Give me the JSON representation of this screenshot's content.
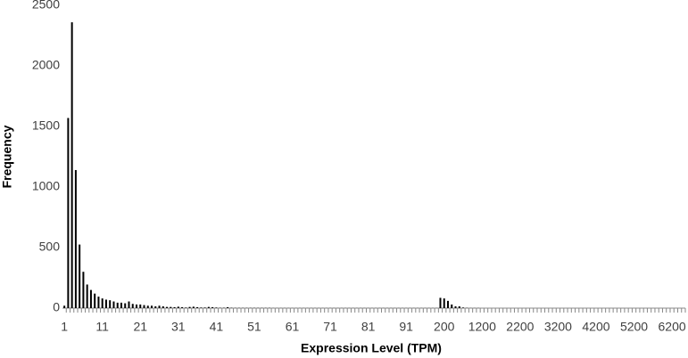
{
  "chart_data": {
    "type": "bar",
    "x_label": "Expression Level (TPM)",
    "y_label": "Frequency",
    "categories": [
      "1",
      null,
      null,
      null,
      null,
      null,
      null,
      null,
      null,
      null,
      "11",
      null,
      null,
      null,
      null,
      null,
      null,
      null,
      null,
      null,
      "21",
      null,
      null,
      null,
      null,
      null,
      null,
      null,
      null,
      null,
      "31",
      null,
      null,
      null,
      null,
      null,
      null,
      null,
      null,
      null,
      "41",
      null,
      null,
      null,
      null,
      null,
      null,
      null,
      null,
      null,
      "51",
      null,
      null,
      null,
      null,
      null,
      null,
      null,
      null,
      null,
      "61",
      null,
      null,
      null,
      null,
      null,
      null,
      null,
      null,
      null,
      "71",
      null,
      null,
      null,
      null,
      null,
      null,
      null,
      null,
      null,
      "81",
      null,
      null,
      null,
      null,
      null,
      null,
      null,
      null,
      null,
      "91",
      null,
      null,
      null,
      null,
      null,
      null,
      null,
      null,
      null,
      "200",
      null,
      null,
      null,
      null,
      null,
      null,
      null,
      null,
      null,
      "1200",
      null,
      null,
      null,
      null,
      null,
      null,
      null,
      null,
      null,
      "2200",
      null,
      null,
      null,
      null,
      null,
      null,
      null,
      null,
      null,
      "3200",
      null,
      null,
      null,
      null,
      null,
      null,
      null,
      null,
      null,
      "4200",
      null,
      null,
      null,
      null,
      null,
      null,
      null,
      null,
      null,
      "5200",
      null,
      null,
      null,
      null,
      null,
      null,
      null,
      null,
      null,
      "6200",
      null,
      null,
      null
    ],
    "values": [
      20,
      1570,
      2360,
      1140,
      525,
      300,
      195,
      150,
      120,
      95,
      80,
      70,
      65,
      55,
      45,
      45,
      40,
      55,
      35,
      30,
      30,
      25,
      20,
      20,
      15,
      20,
      15,
      10,
      10,
      8,
      12,
      8,
      5,
      10,
      12,
      8,
      5,
      5,
      10,
      8,
      5,
      3,
      3,
      8,
      3,
      2,
      2,
      2,
      2,
      2,
      2,
      2,
      2,
      2,
      2,
      1,
      1,
      1,
      1,
      1,
      1,
      1,
      1,
      1,
      1,
      1,
      1,
      1,
      1,
      1,
      1,
      1,
      1,
      1,
      1,
      1,
      1,
      1,
      1,
      1,
      1,
      1,
      1,
      1,
      1,
      1,
      1,
      1,
      1,
      1,
      1,
      1,
      1,
      1,
      1,
      1,
      1,
      1,
      1,
      85,
      80,
      60,
      30,
      15,
      15,
      5,
      2,
      1,
      1,
      1,
      0,
      0,
      0,
      0,
      0,
      0,
      0,
      0,
      0,
      0,
      0,
      0,
      0,
      0,
      0,
      0,
      0,
      0,
      0,
      0,
      0,
      0,
      0,
      0,
      0,
      0,
      0,
      0,
      0,
      0,
      0,
      0,
      0,
      0,
      0,
      0,
      0,
      0,
      0,
      0,
      0,
      0,
      0,
      0,
      0,
      0,
      0,
      0,
      0,
      0,
      0,
      0,
      0,
      0
    ],
    "color": "#000000",
    "ylim": [
      0,
      2500
    ],
    "yticks": [
      0,
      500,
      1000,
      1500,
      2000,
      2500
    ],
    "grid": false
  }
}
